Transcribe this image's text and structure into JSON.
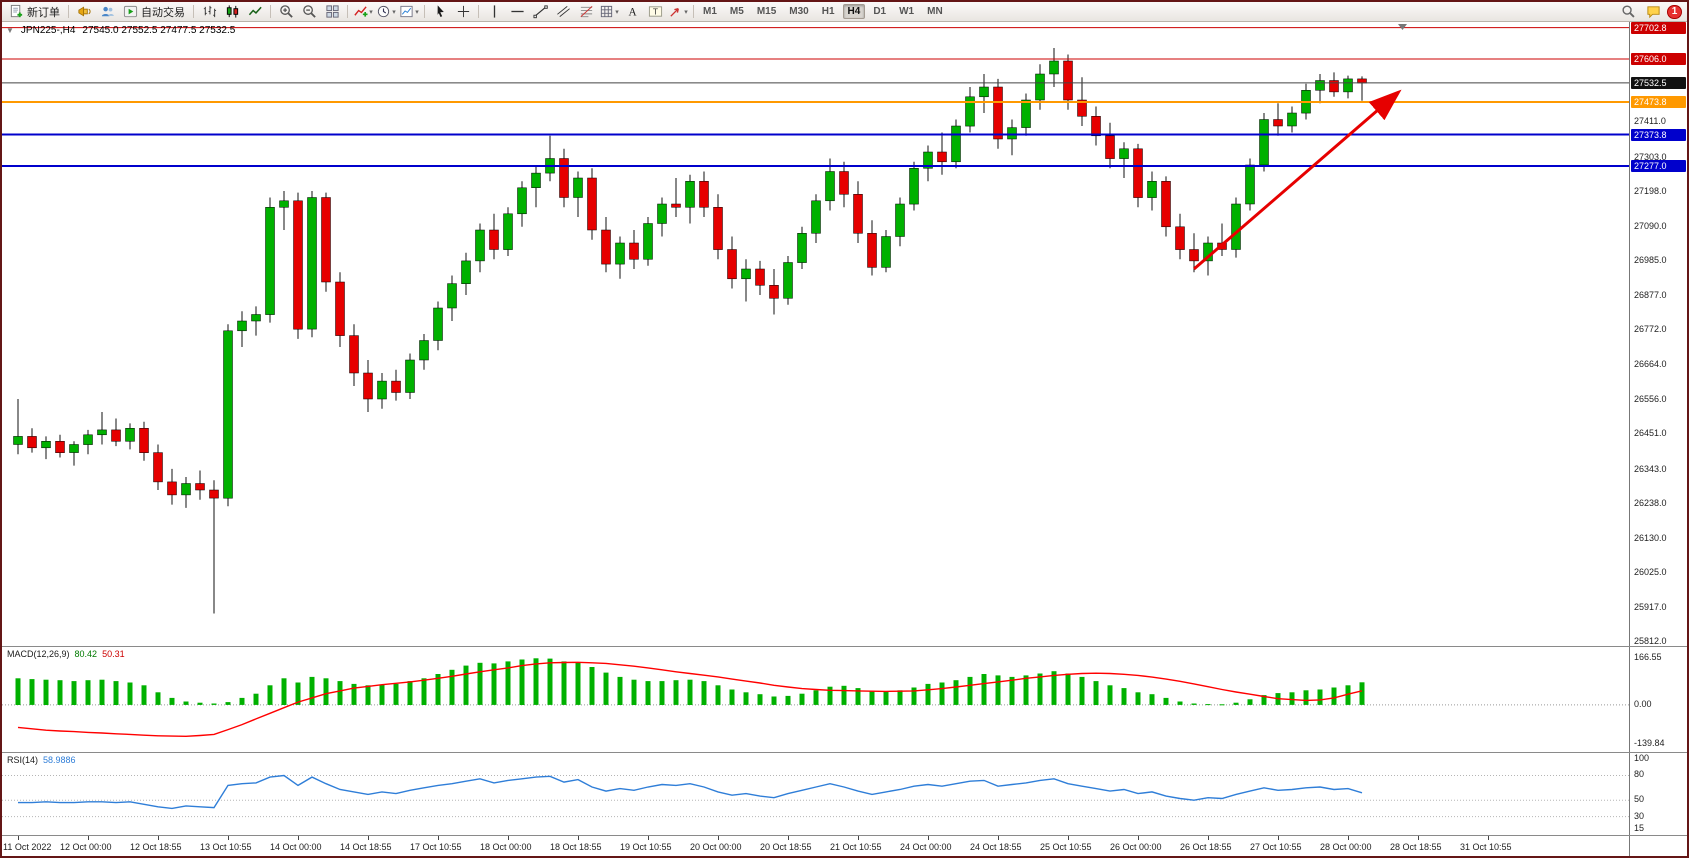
{
  "colors": {
    "up": "#00b100",
    "down": "#e60000",
    "wick": "#111111",
    "macd_hist": "#00b100",
    "macd_signal": "#ff0000",
    "rsi_line": "#2f7ed8",
    "arrow": "#e60000"
  },
  "toolbar": {
    "items": [
      {
        "kind": "button",
        "name": "new-order-button",
        "shape": "doc",
        "label": "新订单"
      },
      {
        "kind": "sep"
      },
      {
        "kind": "icon",
        "name": "alerts-icon",
        "shape": "horn"
      },
      {
        "kind": "icon",
        "name": "community-icon",
        "shape": "people"
      },
      {
        "kind": "button",
        "name": "autotrading-button",
        "shape": "play",
        "label": "自动交易"
      },
      {
        "kind": "sep"
      },
      {
        "kind": "icon",
        "name": "bar-chart-icon",
        "shape": "bars"
      },
      {
        "kind": "icon",
        "name": "candlestick-chart-icon",
        "shape": "candles"
      },
      {
        "kind": "icon",
        "name": "line-chart-icon",
        "shape": "line"
      },
      {
        "kind": "sep"
      },
      {
        "kind": "icon",
        "name": "zoom-in-icon",
        "shape": "zoomin"
      },
      {
        "kind": "icon",
        "name": "zoom-out-icon",
        "shape": "zoomout"
      },
      {
        "kind": "icon",
        "name": "tile-windows-icon",
        "shape": "tile"
      },
      {
        "kind": "sep"
      },
      {
        "kind": "icon",
        "name": "indicators-icon",
        "shape": "ind",
        "dd": true
      },
      {
        "kind": "icon",
        "name": "periods-icon",
        "shape": "clock",
        "dd": true
      },
      {
        "kind": "icon",
        "name": "templates-icon",
        "shape": "tpl",
        "dd": true
      },
      {
        "kind": "sep"
      },
      {
        "kind": "icon",
        "name": "cursor-icon",
        "shape": "cursor"
      },
      {
        "kind": "icon",
        "name": "crosshair-icon",
        "shape": "cross"
      },
      {
        "kind": "sep"
      },
      {
        "kind": "icon",
        "name": "vertical-line-icon",
        "shape": "vline"
      },
      {
        "kind": "icon",
        "name": "horizontal-line-icon",
        "shape": "hline"
      },
      {
        "kind": "icon",
        "name": "trendline-icon",
        "shape": "tline"
      },
      {
        "kind": "icon",
        "name": "channel-icon",
        "shape": "channel"
      },
      {
        "kind": "icon",
        "name": "fibonacci-icon",
        "shape": "fibo"
      },
      {
        "kind": "icon",
        "name": "shapes-icon",
        "shape": "grid",
        "dd": true
      },
      {
        "kind": "icon",
        "name": "text-icon",
        "shape": "textA"
      },
      {
        "kind": "icon",
        "name": "label-icon",
        "shape": "labelT"
      },
      {
        "kind": "icon",
        "name": "arrows-icon",
        "shape": "arrow",
        "dd": true
      },
      {
        "kind": "sep"
      }
    ],
    "timeframes": [
      "M1",
      "M5",
      "M15",
      "M30",
      "H1",
      "H4",
      "D1",
      "W1",
      "MN"
    ],
    "active_timeframe": "H4",
    "notification_count": "1"
  },
  "chart": {
    "symbol_period": "JPN225-,H4",
    "ohlc": "27545.0 27552.5 27477.5 27532.5"
  },
  "price_scale": {
    "ticks": [
      "27411.0",
      "27303.0",
      "27198.0",
      "27090.0",
      "26985.0",
      "26877.0",
      "26772.0",
      "26664.0",
      "26556.0",
      "26451.0",
      "26343.0",
      "26238.0",
      "26130.0",
      "26025.0",
      "25917.0",
      "25812.0"
    ],
    "lines": [
      {
        "price": 27702.8,
        "label": "27702.8",
        "color": "#cc0000",
        "width": 1
      },
      {
        "price": 27606.0,
        "label": "27606.0",
        "color": "#cc0000",
        "width": 1
      },
      {
        "price": 27473.8,
        "label": "27473.8",
        "color": "#ff9900",
        "width": 2
      },
      {
        "price": 27373.8,
        "label": "27373.8",
        "color": "#0000cc",
        "width": 2
      },
      {
        "price": 27277.0,
        "label": "27277.0",
        "color": "#0000cc",
        "width": 2
      }
    ],
    "bid": {
      "price": 27532.5,
      "label": "27532.5"
    }
  },
  "time_axis": {
    "labels": [
      "11 Oct 2022",
      "12 Oct 00:00",
      "12 Oct 18:55",
      "13 Oct 10:55",
      "14 Oct 00:00",
      "14 Oct 18:55",
      "17 Oct 10:55",
      "18 Oct 00:00",
      "18 Oct 18:55",
      "19 Oct 10:55",
      "20 Oct 00:00",
      "20 Oct 18:55",
      "21 Oct 10:55",
      "24 Oct 00:00",
      "24 Oct 18:55",
      "25 Oct 10:55",
      "26 Oct 00:00",
      "26 Oct 18:55",
      "27 Oct 10:55",
      "28 Oct 00:00",
      "28 Oct 18:55",
      "31 Oct 10:55"
    ]
  },
  "macd": {
    "label": "MACD(12,26,9)",
    "value_main": "80.42",
    "value_signal": "50.31",
    "scale": [
      "166.55",
      "0.00",
      "-139.84"
    ]
  },
  "rsi": {
    "label": "RSI(14)",
    "value": "58.9886",
    "scale": [
      "100",
      "80",
      "50",
      "30",
      "15"
    ]
  },
  "chart_data": {
    "type": "candlestick",
    "symbol": "JPN225-",
    "timeframe": "H4",
    "x_range": [
      "11 Oct 2022",
      "31 Oct 10:55"
    ],
    "main": {
      "ymax": 27720,
      "ymin": 25800,
      "candles": [
        [
          26420,
          26560,
          26390,
          26445
        ],
        [
          26445,
          26470,
          26395,
          26410
        ],
        [
          26410,
          26445,
          26375,
          26430
        ],
        [
          26430,
          26450,
          26380,
          26395
        ],
        [
          26395,
          26430,
          26355,
          26420
        ],
        [
          26420,
          26465,
          26390,
          26450
        ],
        [
          26450,
          26520,
          26420,
          26465
        ],
        [
          26465,
          26500,
          26415,
          26430
        ],
        [
          26430,
          26485,
          26405,
          26470
        ],
        [
          26470,
          26490,
          26370,
          26395
        ],
        [
          26395,
          26420,
          26280,
          26305
        ],
        [
          26305,
          26345,
          26235,
          26265
        ],
        [
          26265,
          26320,
          26225,
          26300
        ],
        [
          26300,
          26340,
          26250,
          26280
        ],
        [
          26280,
          26310,
          25900,
          26255
        ],
        [
          26255,
          26790,
          26230,
          26770
        ],
        [
          26770,
          26830,
          26720,
          26800
        ],
        [
          26800,
          26845,
          26755,
          26820
        ],
        [
          26820,
          27180,
          26795,
          27150
        ],
        [
          27150,
          27200,
          27080,
          27170
        ],
        [
          27170,
          27195,
          26745,
          26775
        ],
        [
          26775,
          27200,
          26750,
          27180
        ],
        [
          27180,
          27195,
          26890,
          26920
        ],
        [
          26920,
          26950,
          26720,
          26755
        ],
        [
          26755,
          26790,
          26600,
          26640
        ],
        [
          26640,
          26680,
          26520,
          26560
        ],
        [
          26560,
          26640,
          26530,
          26615
        ],
        [
          26615,
          26650,
          26555,
          26580
        ],
        [
          26580,
          26700,
          26560,
          26680
        ],
        [
          26680,
          26760,
          26650,
          26740
        ],
        [
          26740,
          26860,
          26710,
          26840
        ],
        [
          26840,
          26940,
          26800,
          26915
        ],
        [
          26915,
          27010,
          26880,
          26985
        ],
        [
          26985,
          27100,
          26950,
          27080
        ],
        [
          27080,
          27130,
          26990,
          27020
        ],
        [
          27020,
          27150,
          27000,
          27130
        ],
        [
          27130,
          27230,
          27090,
          27210
        ],
        [
          27210,
          27280,
          27150,
          27255
        ],
        [
          27255,
          27370,
          27230,
          27300
        ],
        [
          27300,
          27330,
          27150,
          27180
        ],
        [
          27180,
          27260,
          27120,
          27240
        ],
        [
          27240,
          27270,
          27050,
          27080
        ],
        [
          27080,
          27120,
          26950,
          26975
        ],
        [
          26975,
          27060,
          26930,
          27040
        ],
        [
          27040,
          27080,
          26960,
          26990
        ],
        [
          26990,
          27120,
          26970,
          27100
        ],
        [
          27100,
          27180,
          27060,
          27160
        ],
        [
          27160,
          27240,
          27120,
          27150
        ],
        [
          27150,
          27250,
          27100,
          27230
        ],
        [
          27230,
          27260,
          27120,
          27150
        ],
        [
          27150,
          27190,
          26990,
          27020
        ],
        [
          27020,
          27060,
          26900,
          26930
        ],
        [
          26930,
          26990,
          26860,
          26960
        ],
        [
          26960,
          26985,
          26880,
          26910
        ],
        [
          26910,
          26960,
          26820,
          26870
        ],
        [
          26870,
          27000,
          26850,
          26980
        ],
        [
          26980,
          27090,
          26960,
          27070
        ],
        [
          27070,
          27190,
          27040,
          27170
        ],
        [
          27170,
          27300,
          27140,
          27260
        ],
        [
          27260,
          27290,
          27150,
          27190
        ],
        [
          27190,
          27230,
          27040,
          27070
        ],
        [
          27070,
          27110,
          26940,
          26965
        ],
        [
          26965,
          27080,
          26950,
          27060
        ],
        [
          27060,
          27180,
          27030,
          27160
        ],
        [
          27160,
          27290,
          27140,
          27270
        ],
        [
          27270,
          27340,
          27230,
          27320
        ],
        [
          27320,
          27380,
          27250,
          27290
        ],
        [
          27290,
          27420,
          27270,
          27400
        ],
        [
          27400,
          27520,
          27380,
          27490
        ],
        [
          27490,
          27560,
          27440,
          27520
        ],
        [
          27520,
          27545,
          27330,
          27360
        ],
        [
          27360,
          27420,
          27310,
          27395
        ],
        [
          27395,
          27500,
          27370,
          27480
        ],
        [
          27480,
          27590,
          27450,
          27560
        ],
        [
          27560,
          27640,
          27520,
          27600
        ],
        [
          27600,
          27620,
          27450,
          27480
        ],
        [
          27480,
          27550,
          27400,
          27430
        ],
        [
          27430,
          27460,
          27340,
          27370
        ],
        [
          27370,
          27410,
          27270,
          27300
        ],
        [
          27300,
          27350,
          27240,
          27330
        ],
        [
          27330,
          27345,
          27150,
          27180
        ],
        [
          27180,
          27260,
          27140,
          27230
        ],
        [
          27230,
          27245,
          27060,
          27090
        ],
        [
          27090,
          27130,
          26990,
          27020
        ],
        [
          27020,
          27070,
          26950,
          26985
        ],
        [
          26985,
          27060,
          26940,
          27040
        ],
        [
          27040,
          27100,
          27000,
          27020
        ],
        [
          27020,
          27180,
          26995,
          27160
        ],
        [
          27160,
          27300,
          27140,
          27280
        ],
        [
          27280,
          27440,
          27260,
          27420
        ],
        [
          27420,
          27470,
          27370,
          27400
        ],
        [
          27400,
          27460,
          27380,
          27440
        ],
        [
          27440,
          27530,
          27420,
          27510
        ],
        [
          27510,
          27560,
          27470,
          27540
        ],
        [
          27540,
          27565,
          27490,
          27505
        ],
        [
          27505,
          27555,
          27485,
          27545
        ],
        [
          27545,
          27552.5,
          27477.5,
          27532.5
        ]
      ]
    },
    "macd": {
      "type": "bar+line",
      "ymax": 185,
      "ymin": -150,
      "histogram": [
        95,
        92,
        90,
        88,
        85,
        88,
        90,
        85,
        80,
        70,
        45,
        25,
        12,
        8,
        5,
        10,
        25,
        40,
        70,
        95,
        80,
        100,
        95,
        85,
        75,
        70,
        72,
        75,
        85,
        95,
        110,
        125,
        140,
        150,
        148,
        155,
        162,
        166,
        165,
        155,
        150,
        135,
        115,
        100,
        90,
        85,
        85,
        88,
        90,
        85,
        70,
        55,
        45,
        38,
        30,
        32,
        40,
        52,
        65,
        68,
        60,
        50,
        48,
        52,
        62,
        75,
        80,
        88,
        100,
        110,
        105,
        100,
        105,
        112,
        120,
        112,
        100,
        85,
        70,
        60,
        45,
        38,
        25,
        12,
        5,
        3,
        2,
        8,
        20,
        35,
        42,
        45,
        52,
        55,
        62,
        70,
        80.42
      ],
      "signal": [
        -80,
        -85,
        -90,
        -93,
        -95,
        -98,
        -100,
        -103,
        -105,
        -108,
        -110,
        -111,
        -112,
        -109,
        -105,
        -88,
        -70,
        -50,
        -30,
        -10,
        10,
        25,
        40,
        50,
        60,
        66,
        72,
        77,
        82,
        88,
        95,
        102,
        110,
        118,
        125,
        132,
        140,
        146,
        150,
        151,
        152,
        150,
        148,
        143,
        138,
        132,
        125,
        118,
        112,
        106,
        100,
        92,
        85,
        78,
        70,
        64,
        58,
        55,
        52,
        51,
        50,
        49,
        48,
        49,
        50,
        54,
        58,
        64,
        70,
        76,
        82,
        88,
        95,
        100,
        105,
        109,
        112,
        113,
        112,
        109,
        105,
        99,
        92,
        84,
        75,
        65,
        55,
        46,
        38,
        30,
        22,
        19,
        16,
        18,
        25,
        38,
        50.31
      ]
    },
    "rsi": {
      "type": "line",
      "ymax": 100,
      "ymin": 15,
      "levels": [
        80,
        50,
        30
      ],
      "values": [
        47,
        47,
        48,
        47,
        47,
        48,
        48,
        47,
        48,
        45,
        42,
        40,
        43,
        42,
        41,
        68,
        70,
        71,
        78,
        80,
        68,
        78,
        70,
        63,
        60,
        57,
        60,
        58,
        62,
        65,
        68,
        70,
        73,
        76,
        71,
        74,
        76,
        78,
        79,
        72,
        75,
        66,
        61,
        64,
        62,
        66,
        69,
        68,
        70,
        66,
        60,
        56,
        58,
        55,
        53,
        58,
        62,
        66,
        70,
        66,
        61,
        57,
        60,
        63,
        67,
        69,
        67,
        70,
        73,
        74,
        67,
        69,
        71,
        74,
        76,
        70,
        67,
        64,
        61,
        63,
        58,
        60,
        55,
        52,
        50,
        53,
        52,
        57,
        61,
        65,
        62,
        63,
        65,
        66,
        63,
        64,
        58.9886
      ]
    }
  },
  "annotations": {
    "trend_arrow": {
      "from_bar": 84,
      "from_price": 26960,
      "to_x": 1395,
      "to_price": 27500
    }
  }
}
